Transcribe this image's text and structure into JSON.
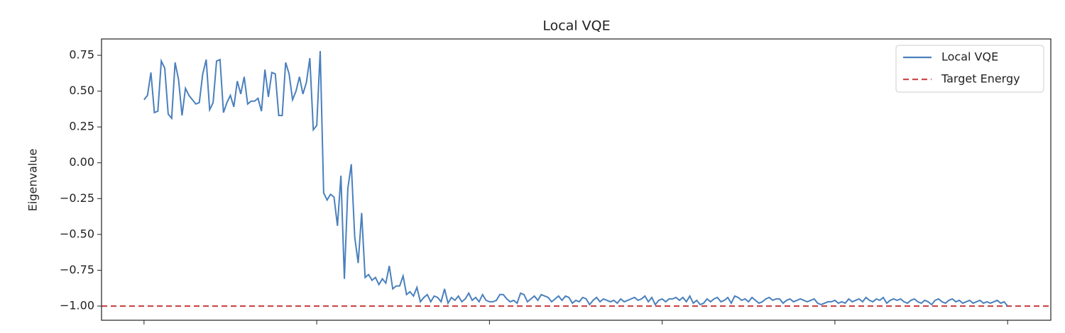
{
  "chart_data": {
    "type": "line",
    "title": "Local VQE",
    "y_label": "Eigenvalue",
    "xlim": [
      -12.3,
      262.5
    ],
    "xticks": [
      0,
      50,
      100,
      150,
      200,
      250
    ],
    "ylim": [
      -1.099,
      0.864
    ],
    "yticks": [
      {
        "value": -1.0,
        "label": "−1.00"
      },
      {
        "value": -0.75,
        "label": "−0.75"
      },
      {
        "value": -0.5,
        "label": "−0.50"
      },
      {
        "value": -0.25,
        "label": "−0.25"
      },
      {
        "value": 0,
        "label": "0.00"
      },
      {
        "value": 0.25,
        "label": "0.25"
      },
      {
        "value": 0.5,
        "label": "0.50"
      },
      0.75
    ],
    "legend": "upper right",
    "series": [
      {
        "name": "Local VQE",
        "color": "#4a80bd",
        "values": [
          0.44,
          0.47,
          0.63,
          0.35,
          0.36,
          0.71,
          0.66,
          0.34,
          0.31,
          0.7,
          0.58,
          0.33,
          0.52,
          0.47,
          0.44,
          0.41,
          0.42,
          0.62,
          0.72,
          0.37,
          0.42,
          0.71,
          0.72,
          0.35,
          0.42,
          0.47,
          0.39,
          0.57,
          0.48,
          0.6,
          0.41,
          0.43,
          0.43,
          0.45,
          0.36,
          0.65,
          0.46,
          0.63,
          0.62,
          0.33,
          0.33,
          0.7,
          0.62,
          0.44,
          0.5,
          0.6,
          0.48,
          0.56,
          0.73,
          0.23,
          0.26,
          0.78,
          -0.21,
          -0.26,
          -0.22,
          -0.24,
          -0.44,
          -0.09,
          -0.81,
          -0.18,
          -0.01,
          -0.52,
          -0.7,
          -0.35,
          -0.8,
          -0.78,
          -0.82,
          -0.8,
          -0.85,
          -0.81,
          -0.84,
          -0.72,
          -0.88,
          -0.86,
          -0.86,
          -0.79,
          -0.92,
          -0.9,
          -0.93,
          -0.87,
          -0.97,
          -0.94,
          -0.92,
          -0.97,
          -0.93,
          -0.94,
          -0.97,
          -0.88,
          -0.98,
          -0.94,
          -0.96,
          -0.93,
          -0.97,
          -0.95,
          -0.91,
          -0.96,
          -0.94,
          -0.97,
          -0.92,
          -0.96,
          -0.97,
          -0.97,
          -0.96,
          -0.92,
          -0.92,
          -0.95,
          -0.97,
          -0.96,
          -0.98,
          -0.91,
          -0.92,
          -0.97,
          -0.95,
          -0.93,
          -0.96,
          -0.92,
          -0.93,
          -0.94,
          -0.97,
          -0.95,
          -0.93,
          -0.96,
          -0.93,
          -0.94,
          -0.98,
          -0.96,
          -0.97,
          -0.94,
          -0.95,
          -0.99,
          -0.96,
          -0.94,
          -0.97,
          -0.95,
          -0.96,
          -0.97,
          -0.96,
          -0.98,
          -0.95,
          -0.97,
          -0.96,
          -0.95,
          -0.94,
          -0.96,
          -0.95,
          -0.93,
          -0.97,
          -0.94,
          -0.99,
          -0.96,
          -0.95,
          -0.97,
          -0.95,
          -0.95,
          -0.94,
          -0.96,
          -0.94,
          -0.97,
          -0.93,
          -0.98,
          -0.96,
          -0.99,
          -0.98,
          -0.95,
          -0.97,
          -0.95,
          -0.94,
          -0.97,
          -0.96,
          -0.94,
          -0.98,
          -0.93,
          -0.94,
          -0.96,
          -0.95,
          -0.97,
          -0.94,
          -0.96,
          -0.98,
          -0.97,
          -0.95,
          -0.94,
          -0.96,
          -0.95,
          -0.95,
          -0.98,
          -0.96,
          -0.95,
          -0.97,
          -0.96,
          -0.95,
          -0.96,
          -0.97,
          -0.96,
          -0.95,
          -0.98,
          -0.99,
          -0.98,
          -0.97,
          -0.97,
          -0.96,
          -0.98,
          -0.97,
          -0.98,
          -0.95,
          -0.97,
          -0.96,
          -0.95,
          -0.97,
          -0.94,
          -0.96,
          -0.97,
          -0.95,
          -0.96,
          -0.94,
          -0.98,
          -0.96,
          -0.95,
          -0.96,
          -0.95,
          -0.97,
          -0.98,
          -0.96,
          -0.95,
          -0.97,
          -0.98,
          -0.96,
          -0.97,
          -0.99,
          -0.96,
          -0.95,
          -0.97,
          -0.98,
          -0.96,
          -0.95,
          -0.97,
          -0.96,
          -0.98,
          -0.97,
          -0.96,
          -0.98,
          -0.97,
          -0.96,
          -0.98,
          -0.97,
          -0.98,
          -0.97,
          -0.96,
          -0.98,
          -0.97,
          -1.0
        ]
      }
    ],
    "reference_lines": [
      {
        "name": "Target Energy",
        "value": -1.0,
        "color": "#cc4c4c"
      }
    ]
  }
}
